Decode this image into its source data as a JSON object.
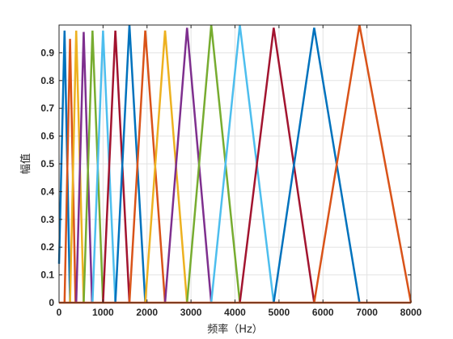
{
  "chart_data": {
    "type": "line",
    "title": "",
    "xlabel": "频率（Hz）",
    "ylabel": "幅值",
    "xlim": [
      0,
      8000
    ],
    "ylim": [
      0,
      1
    ],
    "xticks": [
      0,
      1000,
      2000,
      3000,
      4000,
      5000,
      6000,
      7000,
      8000
    ],
    "xtick_labels": [
      "0",
      "1000",
      "2000",
      "3000",
      "4000",
      "5000",
      "6000",
      "7000",
      "8000"
    ],
    "yticks": [
      0,
      0.1,
      0.2,
      0.3,
      0.4,
      0.5,
      0.6,
      0.7,
      0.8,
      0.9
    ],
    "ytick_labels": [
      "0",
      "0.1",
      "0.2",
      "0.3",
      "0.4",
      "0.5",
      "0.6",
      "0.7",
      "0.8",
      "0.9"
    ],
    "grid": true,
    "legend": "none",
    "series": [
      {
        "color": "#0072BD",
        "x": [
          0,
          125,
          250
        ],
        "y": [
          0.14,
          0.98,
          0
        ]
      },
      {
        "color": "#D95319",
        "x": [
          125,
          250,
          375
        ],
        "y": [
          0,
          0.95,
          0
        ]
      },
      {
        "color": "#EDB120",
        "x": [
          250,
          390,
          560
        ],
        "y": [
          0,
          0.98,
          0
        ]
      },
      {
        "color": "#7E2F8E",
        "x": [
          390,
          560,
          750
        ],
        "y": [
          0,
          0.975,
          0
        ]
      },
      {
        "color": "#77AC30",
        "x": [
          560,
          760,
          1000
        ],
        "y": [
          0,
          0.98,
          0
        ]
      },
      {
        "color": "#4DBEEE",
        "x": [
          760,
          1000,
          1280
        ],
        "y": [
          0,
          0.98,
          0
        ]
      },
      {
        "color": "#A2142F",
        "x": [
          1000,
          1280,
          1600
        ],
        "y": [
          0,
          0.98,
          0
        ]
      },
      {
        "color": "#0072BD",
        "x": [
          1280,
          1600,
          1960
        ],
        "y": [
          0,
          1.0,
          0
        ]
      },
      {
        "color": "#D95319",
        "x": [
          1600,
          1960,
          2410
        ],
        "y": [
          0,
          0.98,
          0
        ]
      },
      {
        "color": "#EDB120",
        "x": [
          1960,
          2410,
          2910
        ],
        "y": [
          0,
          0.98,
          0
        ]
      },
      {
        "color": "#7E2F8E",
        "x": [
          2410,
          2910,
          3460
        ],
        "y": [
          0,
          0.99,
          0
        ]
      },
      {
        "color": "#77AC30",
        "x": [
          2910,
          3460,
          4110
        ],
        "y": [
          0,
          1.0,
          0
        ]
      },
      {
        "color": "#4DBEEE",
        "x": [
          3460,
          4110,
          4880
        ],
        "y": [
          0,
          1.0,
          0
        ]
      },
      {
        "color": "#A2142F",
        "x": [
          4110,
          4880,
          5800
        ],
        "y": [
          0,
          0.99,
          0
        ]
      },
      {
        "color": "#0072BD",
        "x": [
          4880,
          5800,
          6830
        ],
        "y": [
          0,
          0.99,
          0
        ]
      },
      {
        "color": "#D95319",
        "x": [
          5800,
          6830,
          8000
        ],
        "y": [
          0,
          1.0,
          0
        ]
      },
      {
        "color": "#D95319",
        "x": [
          0,
          8000
        ],
        "y": [
          0,
          0
        ]
      }
    ]
  }
}
